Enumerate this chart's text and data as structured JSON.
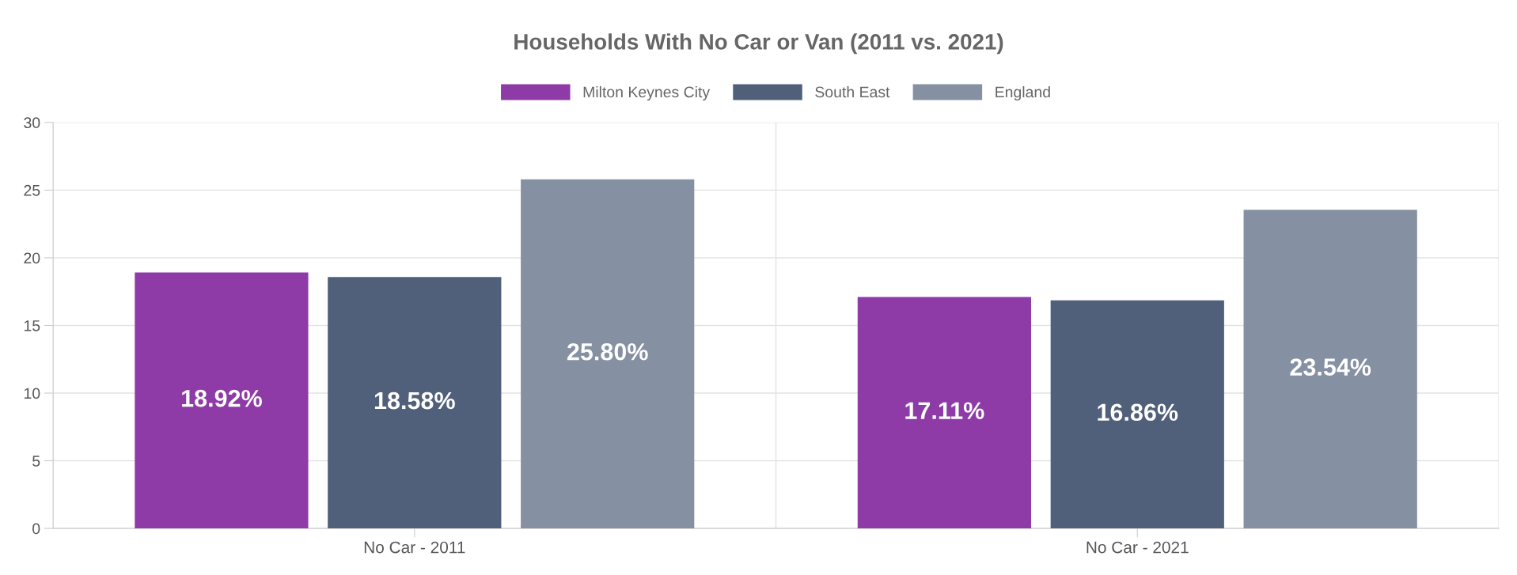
{
  "chart_data": {
    "type": "bar",
    "title": "Households With No Car or Van (2011 vs. 2021)",
    "categories": [
      "No Car - 2011",
      "No Car - 2021"
    ],
    "series": [
      {
        "name": "Milton Keynes City",
        "color": "#8e3ba8",
        "values": [
          18.92,
          17.11
        ],
        "value_labels": [
          "18.92%",
          "17.11%"
        ]
      },
      {
        "name": "South East",
        "color": "#50607a",
        "values": [
          18.58,
          16.86
        ],
        "value_labels": [
          "18.58%",
          "16.86%"
        ]
      },
      {
        "name": "England",
        "color": "#8590a3",
        "values": [
          25.8,
          23.54
        ],
        "value_labels": [
          "25.80%",
          "23.54%"
        ]
      }
    ],
    "ylim": [
      0,
      30
    ],
    "yticks": [
      0,
      5,
      10,
      15,
      20,
      25,
      30
    ],
    "grid": true,
    "legend": "top"
  }
}
